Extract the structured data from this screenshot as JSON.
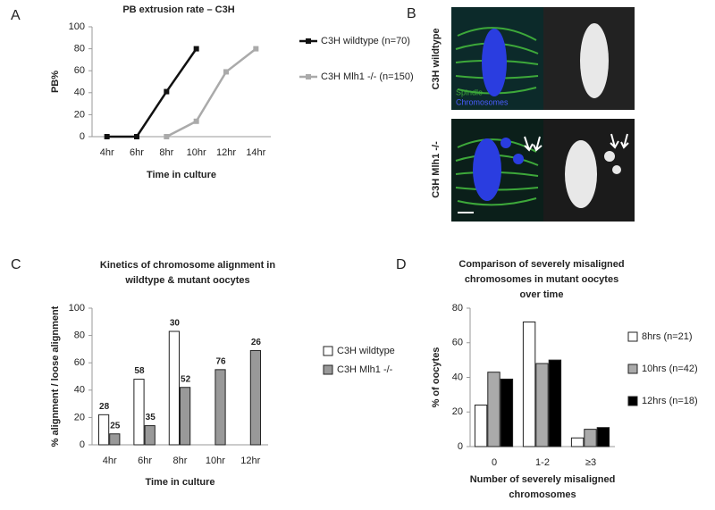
{
  "panel_b": {
    "letter": "B",
    "rows": [
      "C3H wildtype",
      "C3H Mlh1 -/-"
    ],
    "legend": [
      "Spindle",
      "Chromosomes"
    ]
  },
  "chart_data": [
    {
      "type": "line",
      "letter": "A",
      "title": "PB extrusion rate – C3H",
      "xlabel": "Time in culture",
      "ylabel": "PB%",
      "categories": [
        "4hr",
        "6hr",
        "8hr",
        "10hr",
        "12hr",
        "14hr"
      ],
      "ylim": [
        0,
        100
      ],
      "yticks": [
        0,
        20,
        40,
        60,
        80,
        100
      ],
      "grid": false,
      "series": [
        {
          "name": "C3H wildtype (n=70)",
          "color": "#111111",
          "values": [
            0,
            0,
            41,
            80,
            null,
            null
          ]
        },
        {
          "name": "C3H Mlh1 -/- (n=150)",
          "color": "#aaaaaa",
          "values": [
            null,
            null,
            0,
            14,
            59,
            80
          ]
        }
      ]
    },
    {
      "type": "bar",
      "letter": "C",
      "title": [
        "Kinetics of chromosome alignment in",
        "wildtype & mutant oocytes"
      ],
      "xlabel": "Time in culture",
      "ylabel": "% alignment / loose alignment",
      "categories": [
        "4hr",
        "6hr",
        "8hr",
        "10hr",
        "12hr"
      ],
      "ylim": [
        0,
        100
      ],
      "yticks": [
        0,
        20,
        40,
        60,
        80,
        100
      ],
      "grid": false,
      "series": [
        {
          "name": "C3H wildtype",
          "color": "#ffffff",
          "values": [
            22,
            48,
            83,
            null,
            null
          ],
          "counts": [
            28,
            58,
            30,
            null,
            null
          ]
        },
        {
          "name": "C3H Mlh1 -/-",
          "color": "#999999",
          "values": [
            8,
            14,
            42,
            55,
            69
          ],
          "counts": [
            25,
            35,
            52,
            76,
            26
          ]
        }
      ]
    },
    {
      "type": "bar",
      "letter": "D",
      "title": [
        "Comparison of severely misaligned",
        "chromosomes in mutant oocytes",
        "over time"
      ],
      "xlabel": [
        "Number of severely misaligned",
        "chromosomes"
      ],
      "ylabel": "% of oocytes",
      "categories": [
        "0",
        "1-2",
        "≥3"
      ],
      "ylim": [
        0,
        80
      ],
      "yticks": [
        0,
        20,
        40,
        60,
        80
      ],
      "grid": false,
      "series": [
        {
          "name": "8hrs    (n=21)",
          "color": "#ffffff",
          "values": [
            24,
            72,
            5
          ]
        },
        {
          "name": "10hrs (n=42)",
          "color": "#aaaaaa",
          "values": [
            43,
            48,
            10
          ]
        },
        {
          "name": "12hrs (n=18)",
          "color": "#000000",
          "values": [
            39,
            50,
            11
          ]
        }
      ]
    }
  ]
}
